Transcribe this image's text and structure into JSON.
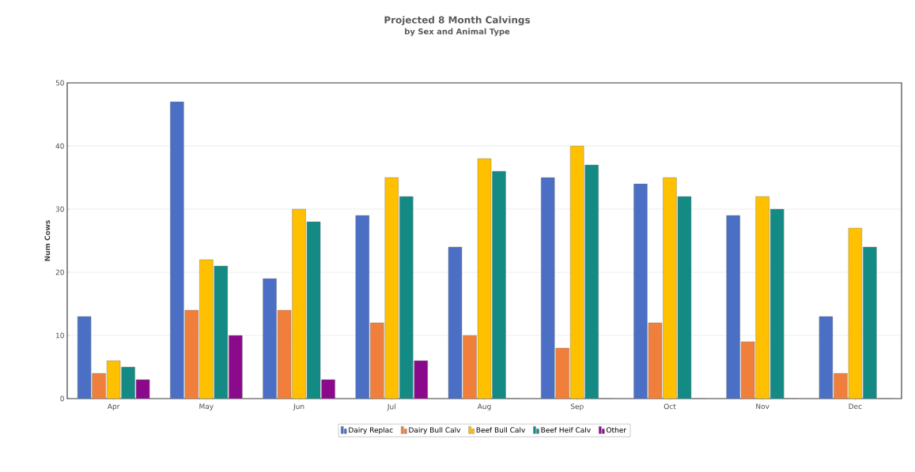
{
  "chart_data": {
    "type": "bar",
    "title": "Projected 8 Month Calvings",
    "subtitle": "by Sex and Animal Type",
    "ylabel": "Num Cows",
    "categories": [
      "Apr",
      "May",
      "Jun",
      "Jul",
      "Aug",
      "Sep",
      "Oct",
      "Nov",
      "Dec"
    ],
    "series": [
      {
        "name": "Dairy Replac",
        "color": "#4a6fc4",
        "values": [
          13,
          47,
          19,
          29,
          24,
          35,
          34,
          29,
          13
        ]
      },
      {
        "name": "Dairy Bull Calv",
        "color": "#f07f3c",
        "values": [
          4,
          14,
          14,
          12,
          10,
          8,
          12,
          9,
          4
        ]
      },
      {
        "name": "Beef Bull Calv",
        "color": "#ffc000",
        "values": [
          6,
          22,
          30,
          35,
          38,
          40,
          35,
          32,
          27
        ]
      },
      {
        "name": "Beef Heif Calv",
        "color": "#138a84",
        "values": [
          5,
          21,
          28,
          32,
          36,
          37,
          32,
          30,
          24
        ]
      },
      {
        "name": "Other",
        "color": "#8b0a8b",
        "values": [
          3,
          10,
          3,
          6,
          0,
          0,
          0,
          0,
          0
        ]
      }
    ],
    "ylim": [
      0,
      50
    ],
    "yticks": [
      0,
      10,
      20,
      30,
      40,
      50
    ],
    "grid": "y",
    "legend": "bottom"
  }
}
